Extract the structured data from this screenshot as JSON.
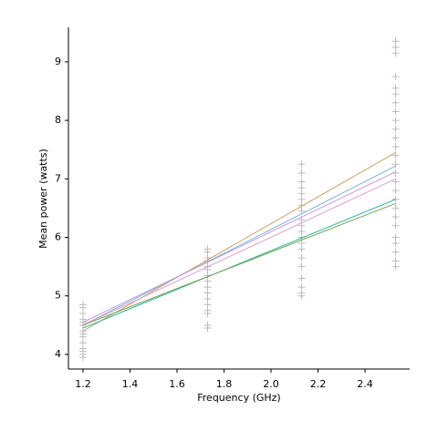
{
  "chart_data": {
    "type": "scatter",
    "xlabel": "Frequency (GHz)",
    "ylabel": "Mean power (watts)",
    "color": "#bbbbbb",
    "marker": "+",
    "x": [
      1.2,
      1.2,
      1.2,
      1.2,
      1.2,
      1.2,
      1.2,
      1.2,
      1.2,
      1.2,
      1.2,
      1.2,
      1.2,
      1.2,
      1.73,
      1.73,
      1.73,
      1.73,
      1.73,
      1.73,
      1.73,
      1.73,
      1.73,
      1.73,
      1.73,
      1.73,
      1.73,
      1.73,
      1.73,
      1.73,
      2.13,
      2.13,
      2.13,
      2.13,
      2.13,
      2.13,
      2.13,
      2.13,
      2.13,
      2.13,
      2.13,
      2.13,
      2.13,
      2.13,
      2.13,
      2.13,
      2.13,
      2.13,
      2.13,
      2.13,
      2.53,
      2.53,
      2.53,
      2.53,
      2.53,
      2.53,
      2.53,
      2.53,
      2.53,
      2.53,
      2.53,
      2.53,
      2.53,
      2.53,
      2.53,
      2.53,
      2.53,
      2.53,
      2.53,
      2.53,
      2.53,
      2.53,
      2.53,
      2.53,
      2.53,
      2.53
    ],
    "y": [
      3.95,
      4.0,
      4.05,
      4.1,
      4.2,
      4.3,
      4.35,
      4.4,
      4.5,
      4.55,
      4.6,
      4.7,
      4.8,
      4.85,
      4.45,
      4.5,
      4.7,
      4.75,
      4.85,
      4.95,
      5.05,
      5.15,
      5.25,
      5.35,
      5.45,
      5.5,
      5.6,
      5.65,
      5.75,
      5.8,
      5.0,
      5.05,
      5.15,
      5.3,
      5.5,
      5.65,
      5.8,
      5.9,
      6.0,
      6.1,
      6.2,
      6.3,
      6.45,
      6.55,
      6.65,
      6.75,
      6.85,
      6.95,
      7.1,
      7.25,
      5.5,
      5.6,
      5.75,
      5.9,
      6.0,
      6.2,
      6.35,
      6.5,
      6.65,
      6.8,
      6.95,
      7.1,
      7.25,
      7.4,
      7.55,
      7.7,
      7.85,
      8.0,
      8.15,
      8.3,
      8.45,
      8.55,
      8.75,
      9.15,
      9.25,
      9.35
    ],
    "fits": [
      {
        "color": "#c9a46a",
        "x": [
          1.2,
          2.53
        ],
        "values": [
          4.4,
          7.45
        ]
      },
      {
        "color": "#7ab3d9",
        "x": [
          1.2,
          2.53
        ],
        "values": [
          4.5,
          7.22
        ]
      },
      {
        "color": "#c99ad6",
        "x": [
          1.2,
          2.53
        ],
        "values": [
          4.55,
          7.12
        ]
      },
      {
        "color": "#e0a0c8",
        "x": [
          1.2,
          2.53
        ],
        "values": [
          4.5,
          7.0
        ]
      },
      {
        "color": "#2fb59a",
        "x": [
          1.2,
          2.53
        ],
        "values": [
          4.45,
          6.65
        ]
      },
      {
        "color": "#78a050",
        "x": [
          1.2,
          2.53
        ],
        "values": [
          4.5,
          6.58
        ]
      }
    ],
    "xlim": [
      1.138,
      2.59
    ],
    "ylim": [
      3.75,
      9.59
    ],
    "xticks": [
      1.2,
      1.4,
      1.6,
      1.8,
      {
        "value": 2,
        "label": "2.0"
      },
      2.2,
      2.4
    ],
    "yticks": [
      4,
      5,
      6,
      7,
      8,
      9
    ]
  }
}
